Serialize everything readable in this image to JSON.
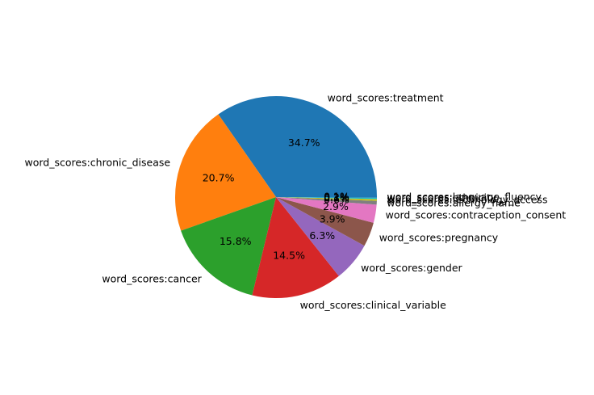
{
  "chart_data": {
    "type": "pie",
    "title": "",
    "slices": [
      {
        "label": "word_scores:treatment",
        "value": 34.7,
        "pct_label": "34.7%",
        "color": "#1f77b4"
      },
      {
        "label": "word_scores:chronic_disease",
        "value": 20.7,
        "pct_label": "20.7%",
        "color": "#ff7f0e"
      },
      {
        "label": "word_scores:cancer",
        "value": 15.8,
        "pct_label": "15.8%",
        "color": "#2ca02c"
      },
      {
        "label": "word_scores:clinical_variable",
        "value": 14.5,
        "pct_label": "14.5%",
        "color": "#d62728"
      },
      {
        "label": "word_scores:gender",
        "value": 6.3,
        "pct_label": "6.3%",
        "color": "#9467bd"
      },
      {
        "label": "word_scores:pregnancy",
        "value": 3.9,
        "pct_label": "3.9%",
        "color": "#8c564b"
      },
      {
        "label": "word_scores:contraception_consent",
        "value": 2.9,
        "pct_label": "2.9%",
        "color": "#e377c2"
      },
      {
        "label": "word_scores:allergy_name",
        "value": 0.6,
        "pct_label": "0.6%",
        "color": "#7f7f7f"
      },
      {
        "label": "word_scores:technology_access",
        "value": 0.3,
        "pct_label": "0.3%",
        "color": "#bcbd22"
      },
      {
        "label": "word_scores:ethnicity",
        "value": 0.2,
        "pct_label": "0.2%",
        "color": "#17becf"
      },
      {
        "label": "word_scores:language_fluency",
        "value": 0.1,
        "pct_label": "0.1%",
        "color": "#1f77b4"
      }
    ],
    "start_angle_deg": 0,
    "direction": "counterclockwise",
    "legend": "none"
  }
}
